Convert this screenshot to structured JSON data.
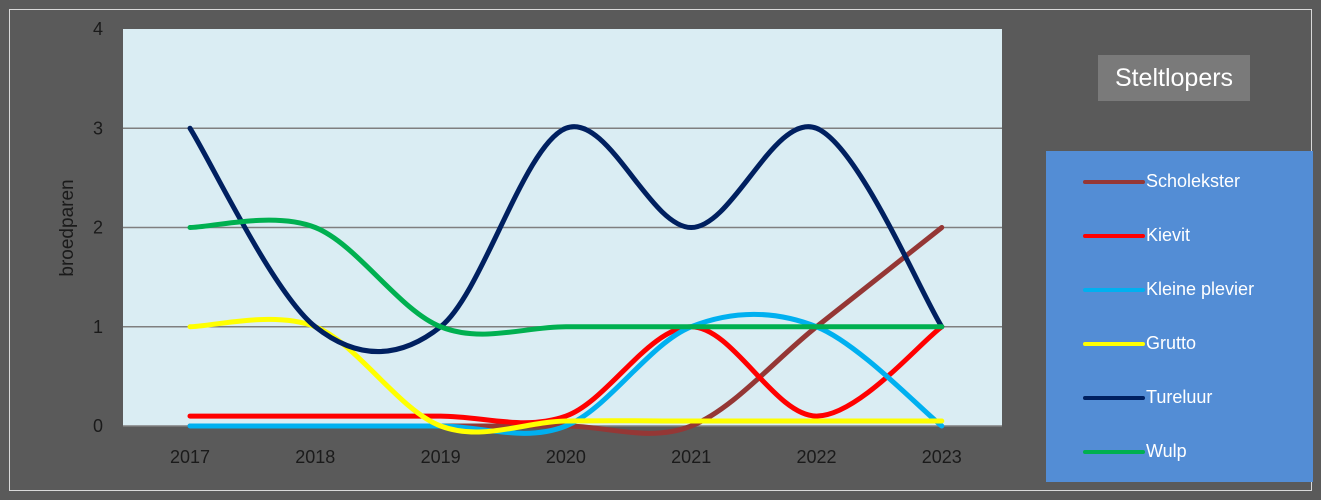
{
  "chart_data": {
    "type": "line",
    "title": "Steltlopers",
    "xlabel": "",
    "ylabel": "broedparen",
    "categories": [
      "2017",
      "2018",
      "2019",
      "2020",
      "2021",
      "2022",
      "2023"
    ],
    "ylim": [
      0,
      4
    ],
    "yticks": [
      0,
      1,
      2,
      3,
      4
    ],
    "grid": true,
    "legend_position": "right",
    "series": [
      {
        "name": "Scholekster",
        "color": "#953735",
        "values": [
          0,
          0,
          0,
          0,
          0,
          1,
          2
        ]
      },
      {
        "name": "Kievit",
        "color": "#ff0000",
        "values": [
          0.1,
          0.1,
          0.1,
          0.1,
          1,
          0.1,
          1
        ]
      },
      {
        "name": "Kleine plevier",
        "color": "#00b0f0",
        "values": [
          0,
          0,
          0,
          0,
          1,
          1,
          0
        ]
      },
      {
        "name": "Grutto",
        "color": "#ffff00",
        "values": [
          1,
          1,
          0,
          0.05,
          0.05,
          0.05,
          0.05
        ]
      },
      {
        "name": "Tureluur",
        "color": "#002060",
        "values": [
          3,
          1,
          1,
          3,
          2,
          3,
          1
        ]
      },
      {
        "name": "Wulp",
        "color": "#00b050",
        "values": [
          2,
          2,
          1,
          1,
          1,
          1,
          1
        ]
      }
    ]
  }
}
